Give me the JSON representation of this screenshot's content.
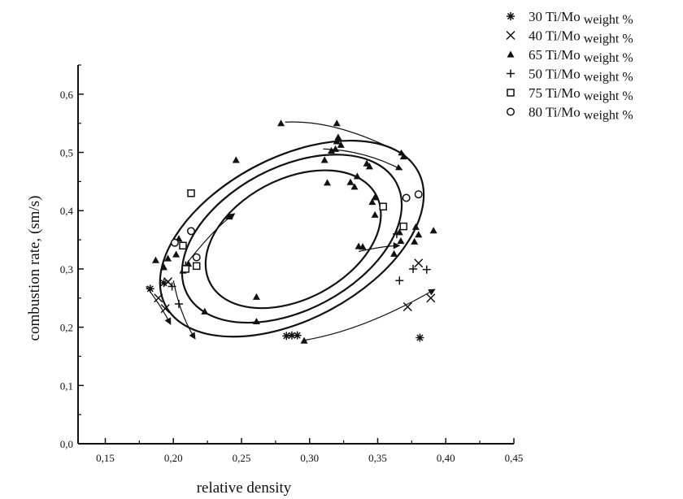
{
  "chart_data": {
    "type": "scatter",
    "xlabel": "relative density",
    "ylabel": "combustion rate, (sm/s)",
    "xlim": [
      0.13,
      0.45
    ],
    "ylim": [
      0.0,
      0.65
    ],
    "x_ticks": [
      0.15,
      0.2,
      0.25,
      0.3,
      0.35,
      0.4,
      0.45
    ],
    "x_tick_labels": [
      "0,15",
      "0,20",
      "0,25",
      "0,30",
      "0,35",
      "0,40",
      "0,45"
    ],
    "y_ticks": [
      0.0,
      0.1,
      0.2,
      0.3,
      0.4,
      0.5,
      0.6
    ],
    "y_tick_labels": [
      "0,0",
      "0,1",
      "0,2",
      "0,3",
      "0,4",
      "0,5",
      "0,6"
    ],
    "legend_position": "top-right",
    "series": [
      {
        "name": "30 Ti/Mo",
        "unit": "weight %",
        "marker": "asterisk",
        "points": [
          [
            0.183,
            0.266
          ],
          [
            0.193,
            0.276
          ],
          [
            0.283,
            0.185
          ],
          [
            0.287,
            0.186
          ],
          [
            0.291,
            0.186
          ],
          [
            0.381,
            0.182
          ]
        ]
      },
      {
        "name": "40 Ti/Mo",
        "unit": "weight %",
        "marker": "cross",
        "points": [
          [
            0.189,
            0.25
          ],
          [
            0.194,
            0.232
          ],
          [
            0.196,
            0.278
          ],
          [
            0.372,
            0.235
          ],
          [
            0.38,
            0.31
          ],
          [
            0.389,
            0.25
          ]
        ]
      },
      {
        "name": "65 Ti/Mo",
        "unit": "weight %",
        "marker": "triangle",
        "points": [
          [
            0.187,
            0.315
          ],
          [
            0.193,
            0.303
          ],
          [
            0.196,
            0.318
          ],
          [
            0.202,
            0.325
          ],
          [
            0.204,
            0.352
          ],
          [
            0.207,
            0.297
          ],
          [
            0.211,
            0.309
          ],
          [
            0.223,
            0.227
          ],
          [
            0.241,
            0.39
          ],
          [
            0.246,
            0.487
          ],
          [
            0.261,
            0.252
          ],
          [
            0.261,
            0.21
          ],
          [
            0.279,
            0.55
          ],
          [
            0.296,
            0.177
          ],
          [
            0.311,
            0.487
          ],
          [
            0.313,
            0.448
          ],
          [
            0.316,
            0.503
          ],
          [
            0.319,
            0.506
          ],
          [
            0.32,
            0.519
          ],
          [
            0.32,
            0.55
          ],
          [
            0.321,
            0.526
          ],
          [
            0.323,
            0.513
          ],
          [
            0.33,
            0.449
          ],
          [
            0.333,
            0.441
          ],
          [
            0.335,
            0.459
          ],
          [
            0.336,
            0.339
          ],
          [
            0.339,
            0.338
          ],
          [
            0.342,
            0.481
          ],
          [
            0.344,
            0.476
          ],
          [
            0.346,
            0.415
          ],
          [
            0.348,
            0.423
          ],
          [
            0.348,
            0.393
          ],
          [
            0.362,
            0.326
          ],
          [
            0.366,
            0.363
          ],
          [
            0.367,
            0.348
          ],
          [
            0.369,
            0.493
          ],
          [
            0.377,
            0.347
          ],
          [
            0.378,
            0.372
          ],
          [
            0.38,
            0.359
          ],
          [
            0.391,
            0.366
          ]
        ]
      },
      {
        "name": "50 Ti/Mo",
        "unit": "weight %",
        "marker": "plus",
        "points": [
          [
            0.199,
            0.27
          ],
          [
            0.204,
            0.24
          ],
          [
            0.209,
            0.306
          ],
          [
            0.364,
            0.36
          ],
          [
            0.366,
            0.28
          ],
          [
            0.376,
            0.3
          ],
          [
            0.386,
            0.299
          ]
        ]
      },
      {
        "name": "75 Ti/Mo",
        "unit": "weight %",
        "marker": "square",
        "points": [
          [
            0.207,
            0.34
          ],
          [
            0.209,
            0.3
          ],
          [
            0.213,
            0.43
          ],
          [
            0.217,
            0.305
          ],
          [
            0.354,
            0.407
          ],
          [
            0.369,
            0.373
          ]
        ]
      },
      {
        "name": "80 Ti/Mo",
        "unit": "weight %",
        "marker": "circle",
        "points": [
          [
            0.201,
            0.345
          ],
          [
            0.213,
            0.365
          ],
          [
            0.217,
            0.32
          ],
          [
            0.371,
            0.422
          ],
          [
            0.38,
            0.428
          ]
        ]
      }
    ],
    "curves": [
      {
        "kind": "ellipse",
        "cx": 0.287,
        "cy": 0.352,
        "rx": 0.105,
        "ry": 0.178,
        "rotate_deg": -28
      },
      {
        "kind": "ellipse",
        "cx": 0.287,
        "cy": 0.352,
        "rx": 0.087,
        "ry": 0.157,
        "rotate_deg": -28
      },
      {
        "kind": "ellipse",
        "cx": 0.288,
        "cy": 0.351,
        "rx": 0.069,
        "ry": 0.132,
        "rotate_deg": -28
      }
    ]
  }
}
